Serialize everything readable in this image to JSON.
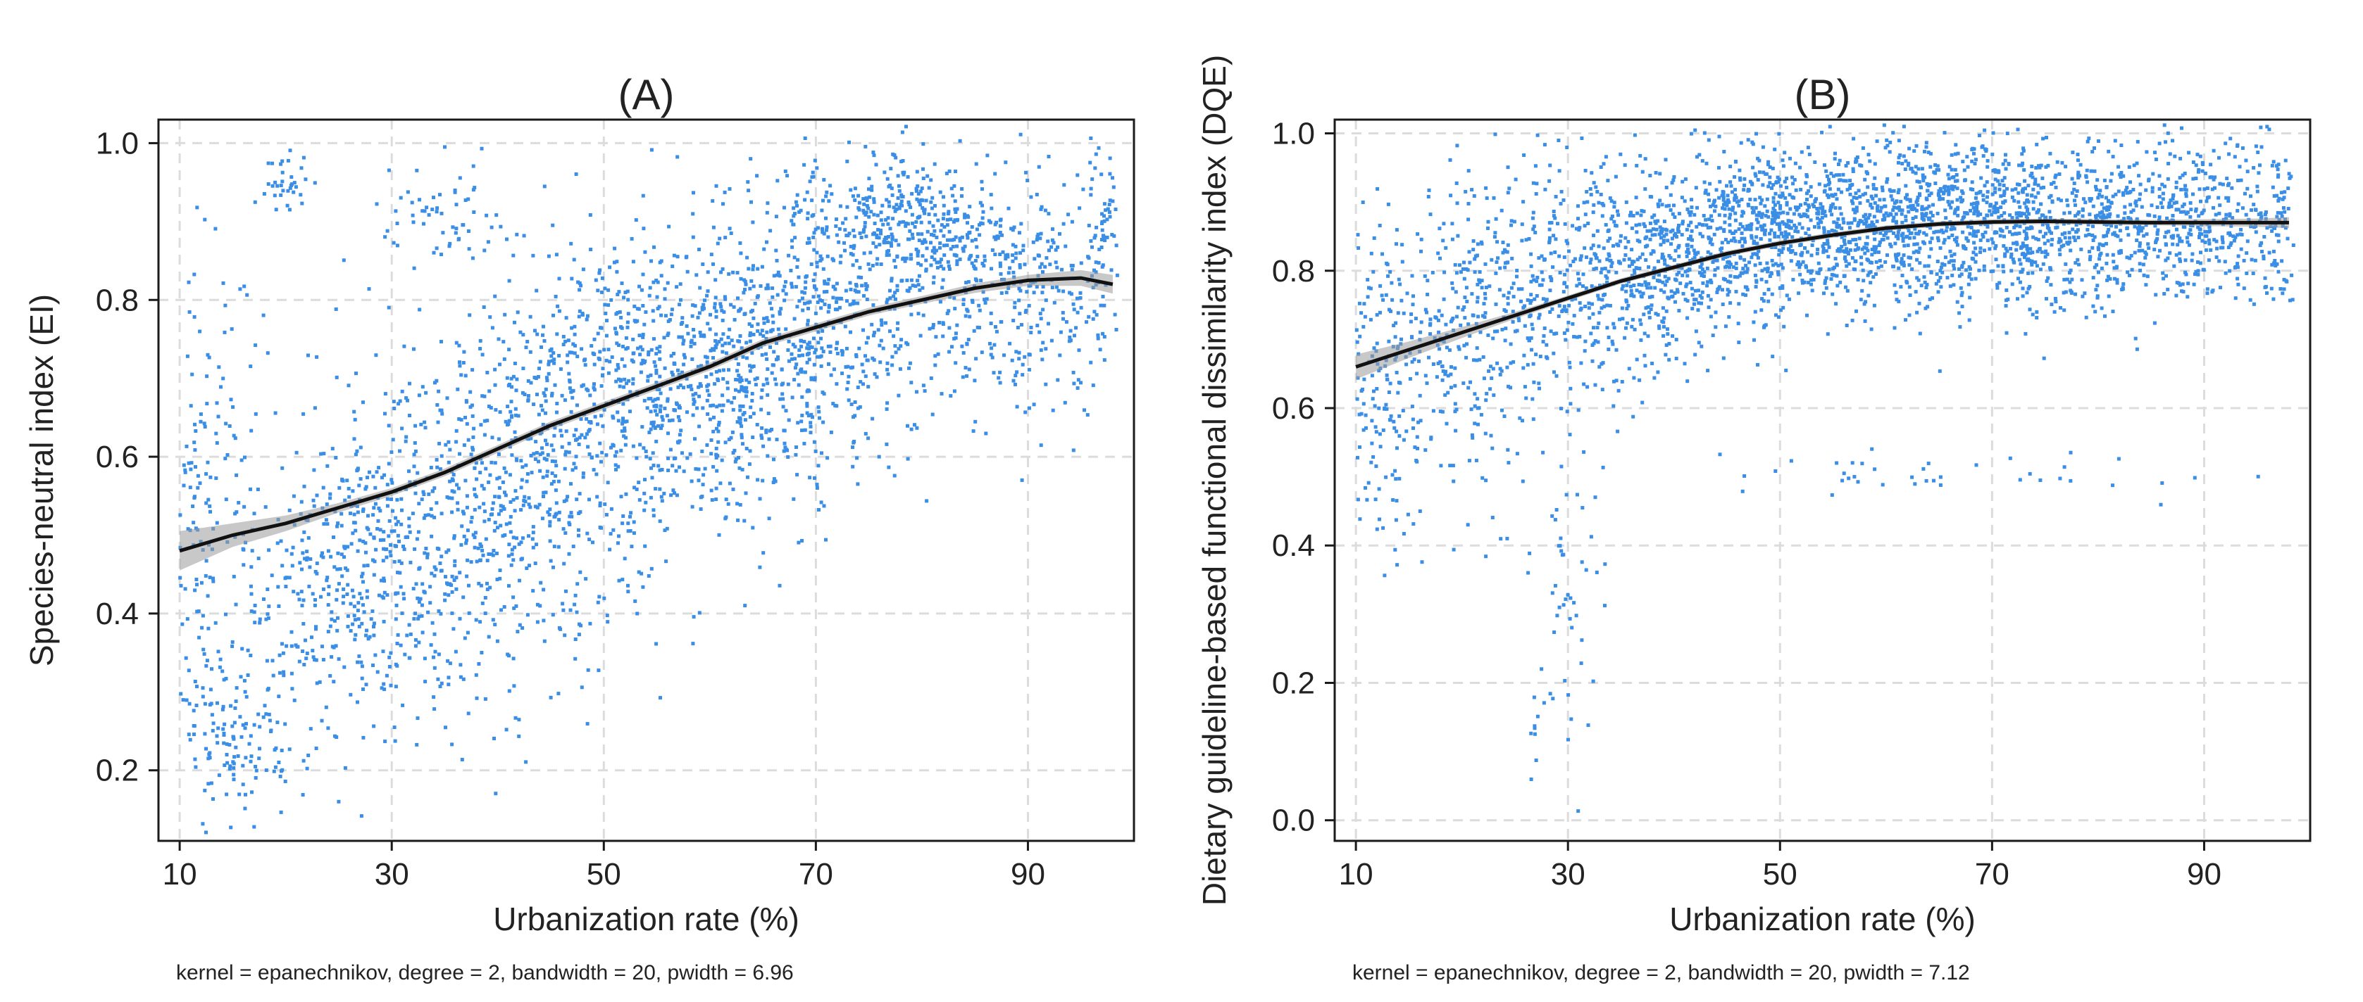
{
  "chart_data": [
    {
      "type": "scatter",
      "panel": "A",
      "title": "(A)",
      "xlabel": "Urbanization rate (%)",
      "ylabel": "Species-neutral index  (EI)",
      "xlim": [
        8,
        100
      ],
      "ylim": [
        0.11,
        1.03
      ],
      "xticks": [
        10,
        30,
        50,
        70,
        90
      ],
      "xtick_labels": [
        "10",
        "30",
        "50",
        "70",
        "90"
      ],
      "yticks": [
        0.2,
        0.4,
        0.6,
        0.8,
        1.0
      ],
      "ytick_labels": [
        "0.2",
        "0.4",
        "0.6",
        "0.8",
        "1.0"
      ],
      "grid": true,
      "note": "kernel = epanechnikov, degree = 2, bandwidth = 20, pwidth = 6.96",
      "point_color": "#3a8ee6",
      "fit": {
        "name": "local polynomial smooth",
        "x": [
          10,
          15,
          20,
          25,
          30,
          35,
          40,
          45,
          50,
          55,
          60,
          65,
          70,
          75,
          80,
          85,
          90,
          95,
          98
        ],
        "y": [
          0.48,
          0.5,
          0.515,
          0.535,
          0.555,
          0.58,
          0.61,
          0.64,
          0.665,
          0.69,
          0.715,
          0.745,
          0.765,
          0.785,
          0.8,
          0.815,
          0.825,
          0.828,
          0.82
        ],
        "ci_half_width": [
          0.025,
          0.015,
          0.01,
          0.006,
          0.005,
          0.005,
          0.005,
          0.005,
          0.005,
          0.005,
          0.005,
          0.005,
          0.005,
          0.005,
          0.005,
          0.006,
          0.007,
          0.01,
          0.012
        ]
      },
      "scatter_clusters": [
        {
          "x": 12,
          "y": 0.5,
          "sx": 3,
          "sy": 0.18,
          "n": 220
        },
        {
          "x": 16,
          "y": 0.25,
          "sx": 3,
          "sy": 0.05,
          "n": 120
        },
        {
          "x": 20,
          "y": 0.95,
          "sx": 1,
          "sy": 0.02,
          "n": 35
        },
        {
          "x": 25,
          "y": 0.45,
          "sx": 5,
          "sy": 0.1,
          "n": 320
        },
        {
          "x": 35,
          "y": 0.9,
          "sx": 3,
          "sy": 0.03,
          "n": 60
        },
        {
          "x": 35,
          "y": 0.5,
          "sx": 6,
          "sy": 0.12,
          "n": 420
        },
        {
          "x": 45,
          "y": 0.6,
          "sx": 6,
          "sy": 0.12,
          "n": 460
        },
        {
          "x": 55,
          "y": 0.7,
          "sx": 6,
          "sy": 0.1,
          "n": 480
        },
        {
          "x": 65,
          "y": 0.72,
          "sx": 6,
          "sy": 0.1,
          "n": 480
        },
        {
          "x": 75,
          "y": 0.82,
          "sx": 6,
          "sy": 0.08,
          "n": 420
        },
        {
          "x": 80,
          "y": 0.9,
          "sx": 5,
          "sy": 0.04,
          "n": 260
        },
        {
          "x": 90,
          "y": 0.8,
          "sx": 4,
          "sy": 0.07,
          "n": 260
        },
        {
          "x": 97,
          "y": 0.88,
          "sx": 1.2,
          "sy": 0.06,
          "n": 80
        }
      ]
    },
    {
      "type": "scatter",
      "panel": "B",
      "title": "(B)",
      "xlabel": "Urbanization rate (%)",
      "ylabel": "Dietary guideline-based functional dissimilarity index  (DQE)",
      "xlim": [
        8,
        100
      ],
      "ylim": [
        -0.03,
        1.02
      ],
      "xticks": [
        10,
        30,
        50,
        70,
        90
      ],
      "xtick_labels": [
        "10",
        "30",
        "50",
        "70",
        "90"
      ],
      "yticks": [
        0.0,
        0.2,
        0.4,
        0.6,
        0.8,
        1.0
      ],
      "ytick_labels": [
        "0.0",
        "0.2",
        "0.4",
        "0.6",
        "0.8",
        "1.0"
      ],
      "grid": true,
      "note": "kernel = epanechnikov, degree = 2, bandwidth = 20, pwidth = 7.12",
      "point_color": "#3a8ee6",
      "fit": {
        "name": "local polynomial smooth",
        "x": [
          10,
          15,
          20,
          25,
          30,
          35,
          40,
          45,
          50,
          55,
          60,
          65,
          70,
          75,
          80,
          85,
          90,
          95,
          98
        ],
        "y": [
          0.66,
          0.685,
          0.71,
          0.735,
          0.76,
          0.785,
          0.805,
          0.825,
          0.84,
          0.852,
          0.862,
          0.868,
          0.871,
          0.872,
          0.871,
          0.87,
          0.87,
          0.87,
          0.87
        ],
        "ci_half_width": [
          0.018,
          0.012,
          0.008,
          0.005,
          0.004,
          0.004,
          0.004,
          0.004,
          0.004,
          0.004,
          0.004,
          0.004,
          0.004,
          0.004,
          0.004,
          0.004,
          0.005,
          0.006,
          0.008
        ]
      },
      "scatter_clusters": [
        {
          "x": 12,
          "y": 0.62,
          "sx": 2.5,
          "sy": 0.12,
          "n": 200
        },
        {
          "x": 20,
          "y": 0.7,
          "sx": 4,
          "sy": 0.12,
          "n": 280
        },
        {
          "x": 30,
          "y": 0.78,
          "sx": 5,
          "sy": 0.1,
          "n": 360
        },
        {
          "x": 30,
          "y": 0.35,
          "sx": 2,
          "sy": 0.12,
          "n": 50
        },
        {
          "x": 27,
          "y": 0.1,
          "sx": 0.4,
          "sy": 0.03,
          "n": 8
        },
        {
          "x": 40,
          "y": 0.82,
          "sx": 5,
          "sy": 0.07,
          "n": 420
        },
        {
          "x": 50,
          "y": 0.87,
          "sx": 5,
          "sy": 0.06,
          "n": 520
        },
        {
          "x": 60,
          "y": 0.87,
          "sx": 5,
          "sy": 0.06,
          "n": 520
        },
        {
          "x": 70,
          "y": 0.88,
          "sx": 5,
          "sy": 0.06,
          "n": 480
        },
        {
          "x": 80,
          "y": 0.86,
          "sx": 5,
          "sy": 0.06,
          "n": 420
        },
        {
          "x": 90,
          "y": 0.88,
          "sx": 4,
          "sy": 0.06,
          "n": 300
        },
        {
          "x": 97,
          "y": 0.86,
          "sx": 1.2,
          "sy": 0.06,
          "n": 70
        },
        {
          "x": 65,
          "y": 0.5,
          "sx": 12,
          "sy": 0.015,
          "n": 40
        }
      ]
    }
  ]
}
